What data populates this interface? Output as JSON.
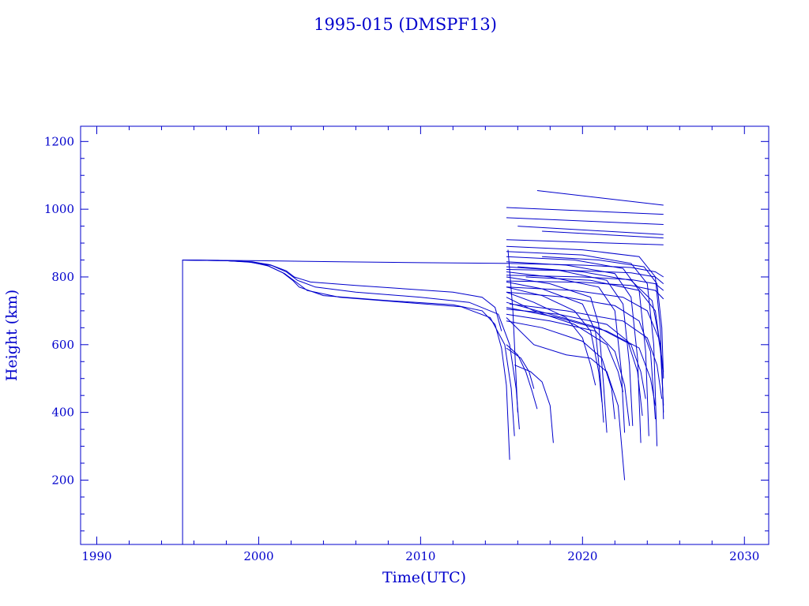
{
  "chart_data": {
    "type": "line",
    "title": "1995-015 (DMSPF13)",
    "xlabel": "Time(UTC)",
    "ylabel": "Height (km)",
    "xlim": [
      1989.0,
      2031.5
    ],
    "ylim": [
      10,
      1245
    ],
    "xticks": [
      "1990",
      "2000",
      "2010",
      "2020",
      "2030"
    ],
    "xtick_values": [
      1990,
      2000,
      2010,
      2020,
      2030
    ],
    "yticks": [
      "200",
      "400",
      "600",
      "800",
      "1000",
      "1200"
    ],
    "ytick_values": [
      200,
      400,
      600,
      800,
      1000,
      1200
    ],
    "grid": false,
    "legend": "none",
    "color": "#0000cc",
    "series": [
      {
        "x": [
          1995.3,
          1995.3,
          1997.5,
          1999.3,
          2000.5,
          2001.5,
          2002.1,
          2002.5,
          2004.0,
          2008.0,
          2012.0,
          2013.8,
          2014.6,
          2015.0,
          2015.3,
          2015.5
        ],
        "y": [
          10,
          850,
          849,
          845,
          835,
          812,
          790,
          770,
          745,
          730,
          718,
          700,
          660,
          590,
          480,
          260
        ]
      },
      {
        "x": [
          1995.3,
          1998.0,
          1999.6,
          2000.6,
          2001.6,
          2002.3,
          2003.0,
          2005.0,
          2009.0,
          2012.5,
          2014.3,
          2015.2,
          2015.6,
          2015.8
        ],
        "y": [
          850,
          848,
          843,
          832,
          810,
          785,
          760,
          740,
          725,
          712,
          680,
          600,
          470,
          330
        ]
      },
      {
        "x": [
          1995.3,
          1998.0,
          1999.6,
          2000.8,
          2001.7,
          2002.4,
          2003.5,
          2006.0,
          2010.0,
          2013.0,
          2014.8,
          2015.5,
          2015.9,
          2016.1
        ],
        "y": [
          850,
          848,
          844,
          834,
          815,
          790,
          770,
          755,
          740,
          725,
          690,
          600,
          470,
          350
        ]
      },
      {
        "x": [
          1995.3,
          1998.0,
          1999.6,
          2000.7,
          2001.7,
          2002.2,
          2003.2,
          2006.0,
          2009.0,
          2012.0,
          2013.8,
          2014.6,
          2015.0
        ],
        "y": [
          850,
          848,
          845,
          836,
          818,
          800,
          785,
          775,
          765,
          755,
          740,
          710,
          640
        ]
      },
      {
        "x": [
          1995.3,
          2000.0,
          2005.0,
          2010.0,
          2015.3
        ],
        "y": [
          850,
          848,
          845,
          842,
          840
        ]
      },
      {
        "x": [
          2015.3,
          2017.0,
          2019.0,
          2020.5,
          2021.5,
          2022.2,
          2022.6
        ],
        "y": [
          680,
          600,
          570,
          560,
          520,
          420,
          200
        ]
      },
      {
        "x": [
          2015.3,
          2016.0,
          2016.5,
          2016.9,
          2017.2
        ],
        "y": [
          600,
          570,
          520,
          460,
          410
        ]
      },
      {
        "x": [
          2015.8,
          2016.8,
          2017.5,
          2018.0,
          2018.2
        ],
        "y": [
          540,
          520,
          490,
          420,
          310
        ]
      },
      {
        "x": [
          2015.3,
          2016.2,
          2016.7,
          2017.0
        ],
        "y": [
          590,
          560,
          520,
          470
        ]
      },
      {
        "x": [
          2015.4,
          2015.7,
          2016.0
        ],
        "y": [
          880,
          700,
          400
        ]
      },
      {
        "x": [
          2015.3,
          2025.0
        ],
        "y": [
          1005,
          985
        ]
      },
      {
        "x": [
          2017.2,
          2025.0
        ],
        "y": [
          1055,
          1012
        ]
      },
      {
        "x": [
          2015.3,
          2025.0
        ],
        "y": [
          975,
          955
        ]
      },
      {
        "x": [
          2016.0,
          2025.0
        ],
        "y": [
          950,
          925
        ]
      },
      {
        "x": [
          2017.5,
          2025.0
        ],
        "y": [
          935,
          915
        ]
      },
      {
        "x": [
          2015.3,
          2025.0
        ],
        "y": [
          910,
          895
        ]
      },
      {
        "x": [
          2015.3,
          2020.0,
          2023.5,
          2024.5,
          2024.8,
          2025.0
        ],
        "y": [
          890,
          880,
          860,
          800,
          650,
          400
        ]
      },
      {
        "x": [
          2015.3,
          2020.0,
          2023.0,
          2024.0,
          2024.4,
          2024.6
        ],
        "y": [
          875,
          865,
          840,
          780,
          600,
          300
        ]
      },
      {
        "x": [
          2015.3,
          2019.5,
          2022.5,
          2023.5,
          2023.9,
          2024.1
        ],
        "y": [
          860,
          850,
          825,
          760,
          580,
          330
        ]
      },
      {
        "x": [
          2015.3,
          2019.0,
          2022.0,
          2023.0,
          2023.4,
          2023.6
        ],
        "y": [
          845,
          835,
          810,
          740,
          560,
          310
        ]
      },
      {
        "x": [
          2015.3,
          2018.5,
          2021.5,
          2022.5,
          2022.9,
          2023.1
        ],
        "y": [
          830,
          820,
          790,
          720,
          540,
          360
        ]
      },
      {
        "x": [
          2015.3,
          2018.0,
          2021.0,
          2022.0,
          2022.4,
          2022.6
        ],
        "y": [
          815,
          800,
          770,
          700,
          520,
          340
        ]
      },
      {
        "x": [
          2015.3,
          2018.0,
          2020.5,
          2021.0,
          2021.3,
          2021.5
        ],
        "y": [
          800,
          780,
          740,
          660,
          480,
          340
        ]
      },
      {
        "x": [
          2015.3,
          2017.5,
          2020.0,
          2020.8,
          2021.1,
          2021.3
        ],
        "y": [
          785,
          765,
          720,
          640,
          500,
          370
        ]
      },
      {
        "x": [
          2015.3,
          2017.5,
          2019.5,
          2020.5,
          2021.0,
          2021.2
        ],
        "y": [
          770,
          745,
          700,
          640,
          520,
          430
        ]
      },
      {
        "x": [
          2015.3,
          2017.0,
          2019.0,
          2020.0,
          2020.5,
          2020.8
        ],
        "y": [
          755,
          725,
          680,
          620,
          540,
          480
        ]
      },
      {
        "x": [
          2015.3,
          2017.0,
          2019.5,
          2021.5,
          2022.2,
          2022.5
        ],
        "y": [
          740,
          700,
          660,
          600,
          520,
          460
        ]
      },
      {
        "x": [
          2015.3,
          2018.0,
          2021.0,
          2023.0,
          2023.6,
          2023.9
        ],
        "y": [
          725,
          690,
          650,
          600,
          520,
          440
        ]
      },
      {
        "x": [
          2015.3,
          2018.5,
          2021.5,
          2023.5,
          2024.2,
          2024.5
        ],
        "y": [
          710,
          680,
          640,
          590,
          500,
          420
        ]
      },
      {
        "x": [
          2015.5,
          2019.0,
          2022.5,
          2024.0,
          2024.6,
          2024.9
        ],
        "y": [
          720,
          700,
          670,
          620,
          540,
          440
        ]
      },
      {
        "x": [
          2016.0,
          2020.0,
          2023.0,
          2024.3,
          2024.8,
          2025.0
        ],
        "y": [
          830,
          815,
          790,
          730,
          600,
          420
        ]
      },
      {
        "x": [
          2016.5,
          2020.5,
          2023.5,
          2024.5,
          2024.9,
          2025.0
        ],
        "y": [
          800,
          790,
          760,
          700,
          560,
          380
        ]
      },
      {
        "x": [
          2017.5,
          2021.0,
          2023.8,
          2024.6,
          2024.9,
          2025.0
        ],
        "y": [
          860,
          850,
          830,
          780,
          650,
          500
        ]
      },
      {
        "x": [
          2015.3,
          2020.0,
          2023.0,
          2024.5,
          2025.0
        ],
        "y": [
          840,
          835,
          828,
          815,
          800
        ]
      },
      {
        "x": [
          2015.3,
          2020.0,
          2023.0,
          2024.5,
          2025.0
        ],
        "y": [
          822,
          818,
          812,
          800,
          780
        ]
      },
      {
        "x": [
          2015.3,
          2020.0,
          2023.0,
          2024.5,
          2025.0
        ],
        "y": [
          805,
          800,
          792,
          780,
          760
        ]
      },
      {
        "x": [
          2015.3,
          2020.0,
          2023.0,
          2024.5,
          2025.0
        ],
        "y": [
          788,
          784,
          775,
          760,
          735
        ]
      },
      {
        "x": [
          2015.3,
          2019.5,
          2022.5,
          2024.0,
          2024.7,
          2025.0
        ],
        "y": [
          770,
          760,
          740,
          700,
          620,
          520
        ]
      },
      {
        "x": [
          2015.3,
          2019.0,
          2022.0,
          2023.5,
          2024.2,
          2024.5
        ],
        "y": [
          755,
          740,
          715,
          670,
          580,
          380
        ]
      },
      {
        "x": [
          2015.3,
          2018.5,
          2021.5,
          2022.8,
          2023.4,
          2023.7
        ],
        "y": [
          705,
          690,
          660,
          610,
          520,
          390
        ]
      },
      {
        "x": [
          2015.3,
          2018.0,
          2020.8,
          2022.0,
          2022.6,
          2022.9
        ],
        "y": [
          690,
          670,
          640,
          580,
          480,
          360
        ]
      },
      {
        "x": [
          2015.3,
          2017.5,
          2020.0,
          2021.2,
          2021.8,
          2022.0
        ],
        "y": [
          670,
          650,
          610,
          560,
          470,
          380
        ]
      }
    ]
  }
}
